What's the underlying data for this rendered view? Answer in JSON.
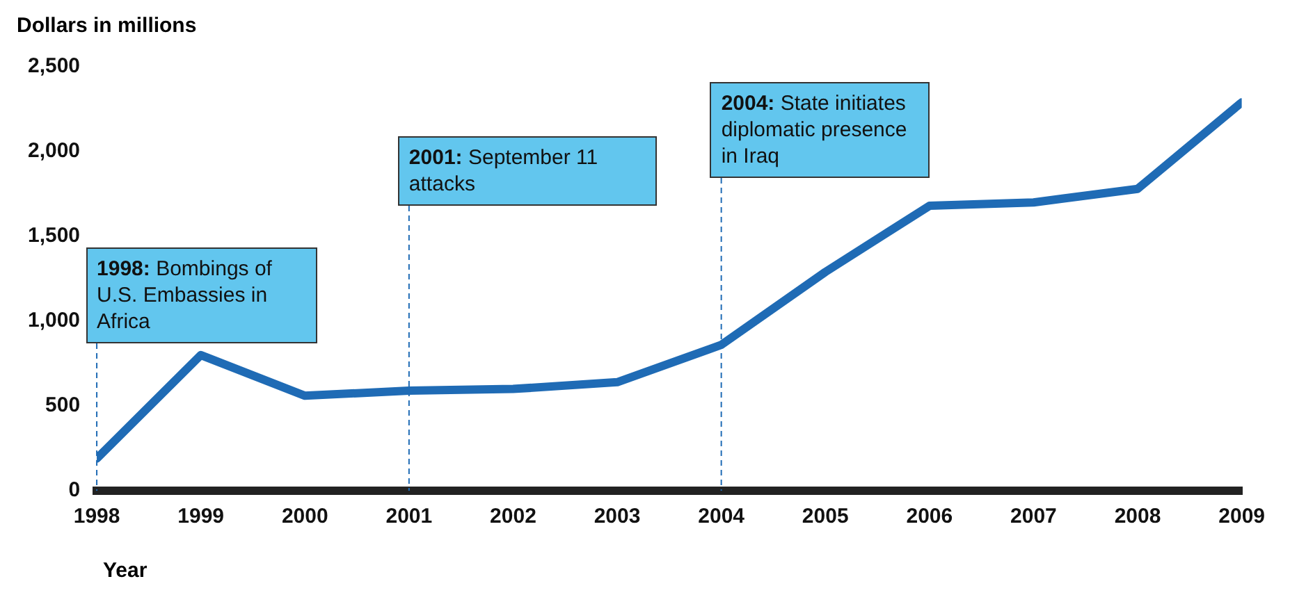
{
  "chart_data": {
    "type": "line",
    "xlabel": "Year",
    "ylabel": "Dollars in millions",
    "x": [
      1998,
      1999,
      2000,
      2001,
      2002,
      2003,
      2004,
      2005,
      2006,
      2007,
      2008,
      2009
    ],
    "series": [
      {
        "color": "#1f6bb5",
        "values": [
          190,
          800,
          560,
          590,
          600,
          640,
          860,
          1290,
          1680,
          1700,
          1780,
          2290
        ]
      }
    ],
    "xlim": [
      1998,
      2009
    ],
    "xticks": [
      1998,
      1999,
      2000,
      2001,
      2002,
      2003,
      2004,
      2005,
      2006,
      2007,
      2008,
      2009
    ],
    "ylim": [
      0,
      2500
    ],
    "yticks": [
      {
        "value": 0,
        "label": "0"
      },
      {
        "value": 500,
        "label": "500"
      },
      {
        "value": 1000,
        "label": "1,000"
      },
      {
        "value": 1500,
        "label": "1,500"
      },
      {
        "value": 2000,
        "label": "2,000"
      },
      {
        "value": 2500,
        "label": "2,500"
      }
    ],
    "grid": false,
    "legend": false,
    "marker": "none",
    "line_style": "solid",
    "ref_lines": [
      {
        "axis": "x",
        "value": 1998,
        "label": "1998: Bombings of U.S. Embassies in Africa",
        "color": "#1f6bb5",
        "line_style": "dashed"
      },
      {
        "axis": "x",
        "value": 2001,
        "label": "2001: September 11 attacks",
        "color": "#1f6bb5",
        "line_style": "dashed"
      },
      {
        "axis": "x",
        "value": 2004,
        "label": "2004: State initiates diplomatic presence in Iraq",
        "color": "#1f6bb5",
        "line_style": "dashed"
      }
    ]
  }
}
